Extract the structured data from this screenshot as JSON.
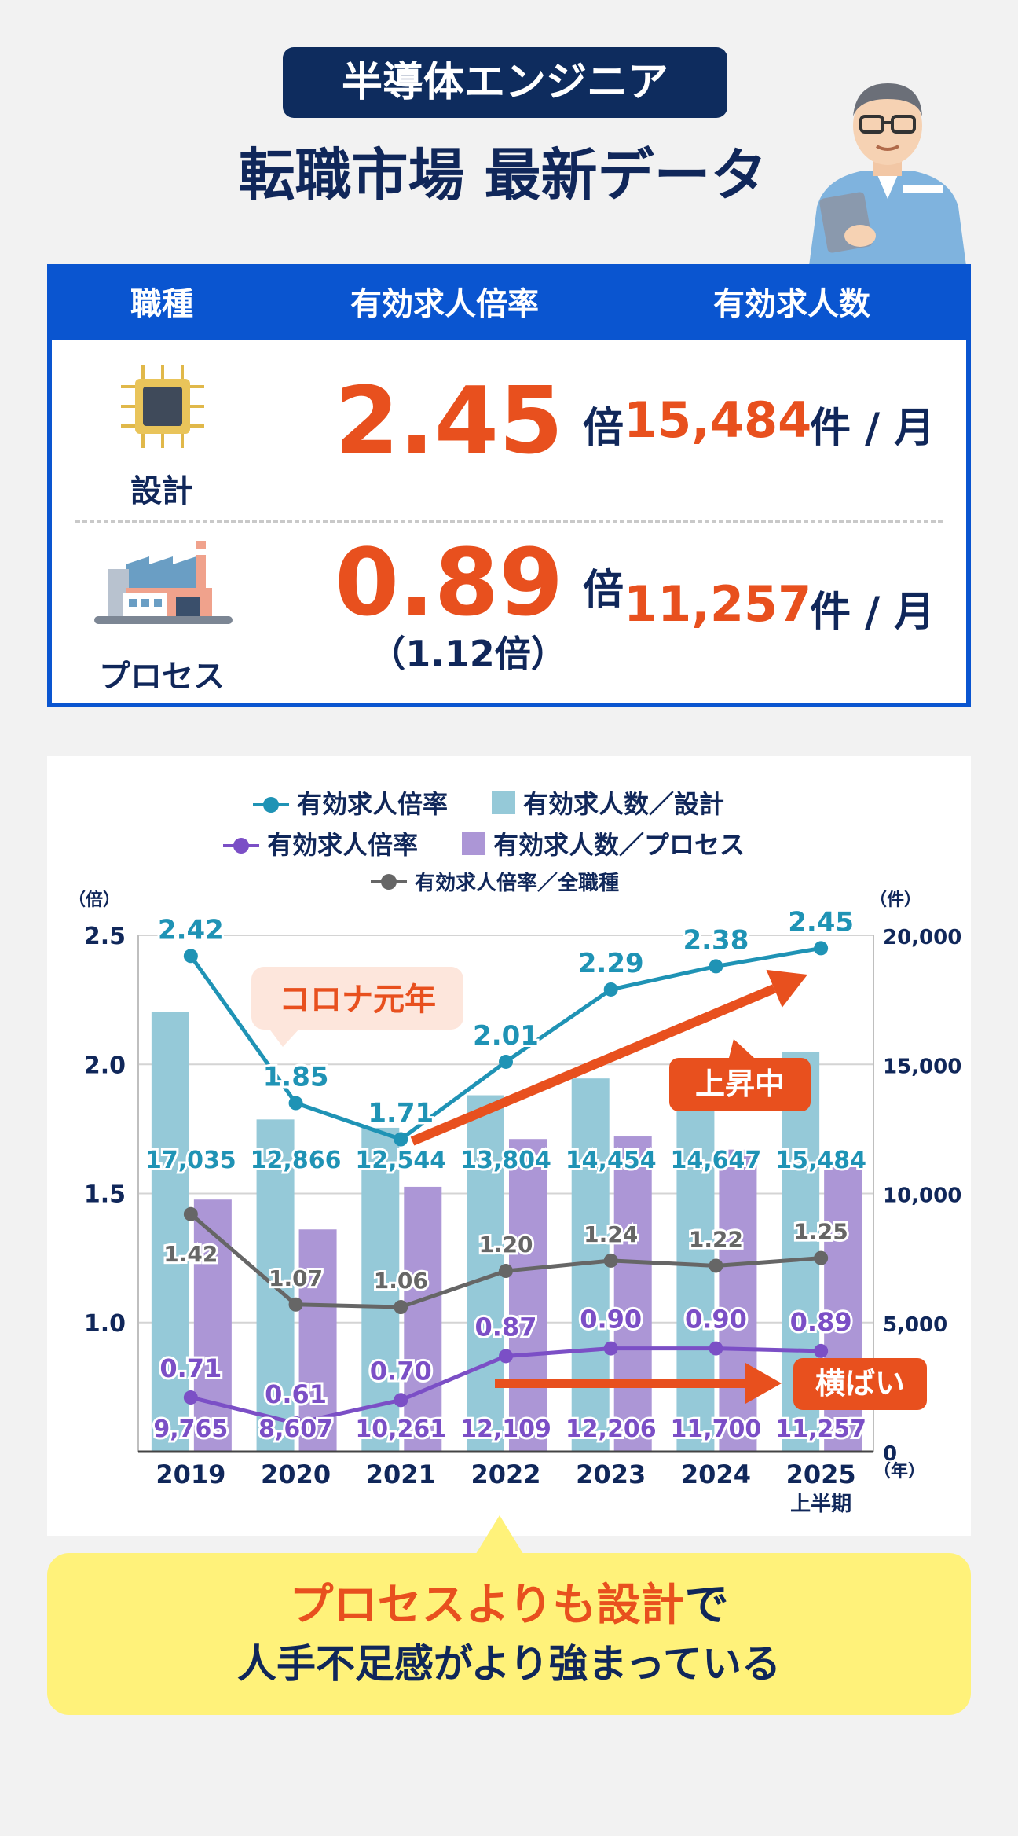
{
  "header": {
    "badge": "半導体エンジニア",
    "title": "転職市場 最新データ"
  },
  "table": {
    "headers": [
      "職種",
      "有効求人倍率",
      "有効求人数"
    ],
    "rows": [
      {
        "label": "設計",
        "rate": "2.45",
        "rate_unit": "倍",
        "rate_sub": "",
        "count": "15,484",
        "count_unit": "件 / 月",
        "icon": "chip-icon"
      },
      {
        "label": "プロセス",
        "rate": "0.89",
        "rate_unit": "倍",
        "rate_sub": "（1.12倍）",
        "count": "11,257",
        "count_unit": "件 / 月",
        "icon": "factory-icon"
      }
    ]
  },
  "chart_data": {
    "type": "bar",
    "categories": [
      "2019",
      "2020",
      "2021",
      "2022",
      "2023",
      "2024",
      "2025"
    ],
    "category_sub": [
      "",
      "",
      "",
      "",
      "",
      "",
      "上半期"
    ],
    "x_unit": "（年）",
    "y_left_unit": "（倍）",
    "y_right_unit": "（件）",
    "y_left_ticks": [
      "2.5",
      "2.0",
      "1.5",
      "1.0"
    ],
    "y_right_ticks": [
      "20,000",
      "15,000",
      "10,000",
      "5,000",
      "0"
    ],
    "ylim_left": [
      0.5,
      2.5
    ],
    "ylim_right": [
      0,
      20000
    ],
    "legend": [
      "有効求人倍率",
      "有効求人数／設計",
      "有効求人倍率",
      "有効求人数／プロセス",
      "有効求人倍率／全職種"
    ],
    "bars_design": [
      17035,
      12866,
      12544,
      13804,
      14454,
      14647,
      15484
    ],
    "bars_design_labels": [
      "17,035",
      "12,866",
      "12,544",
      "13,804",
      "14,454",
      "14,647",
      "15,484"
    ],
    "bars_process": [
      9765,
      8607,
      10261,
      12109,
      12206,
      11700,
      11257
    ],
    "bars_process_labels": [
      "9,765",
      "8,607",
      "10,261",
      "12,109",
      "12,206",
      "11,700",
      "11,257"
    ],
    "line_design": [
      2.42,
      1.85,
      1.71,
      2.01,
      2.29,
      2.38,
      2.45
    ],
    "line_design_labels": [
      "2.42",
      "1.85",
      "1.71",
      "2.01",
      "2.29",
      "2.38",
      "2.45"
    ],
    "line_process": [
      0.71,
      0.61,
      0.7,
      0.87,
      0.9,
      0.9,
      0.89
    ],
    "line_process_labels": [
      "0.71",
      "0.61",
      "0.70",
      "0.87",
      "0.90",
      "0.90",
      "0.89"
    ],
    "line_all": [
      1.42,
      1.07,
      1.06,
      1.2,
      1.24,
      1.22,
      1.25
    ],
    "line_all_labels": [
      "1.42",
      "1.07",
      "1.06",
      "1.20",
      "1.24",
      "1.22",
      "1.25"
    ],
    "annotations": [
      "コロナ元年",
      "上昇中",
      "横ばい"
    ],
    "colors": {
      "design_bar": "#95c9d8",
      "process_bar": "#ac96d6",
      "design_line": "#1f93b5",
      "process_line": "#7b4fc6",
      "all_line": "#666666",
      "arrow": "#e8501e"
    }
  },
  "callout": {
    "line1_highlight": "プロセスよりも設計",
    "line1_rest": "で",
    "line2": "人手不足感がより強まっている"
  }
}
